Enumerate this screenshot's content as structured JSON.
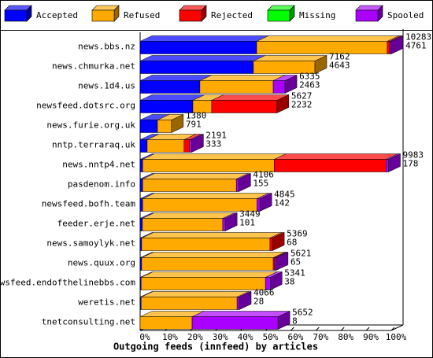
{
  "chart_data": {
    "type": "stacked-bar-3d",
    "orientation": "horizontal",
    "x_label": "Outgoing feeds (innfeed) by articles",
    "categories": [
      "news.bbs.nz",
      "news.chmurka.net",
      "news.1d4.us",
      "newsfeed.dotsrc.org",
      "news.furie.org.uk",
      "nntp.terraraq.uk",
      "news.nntp4.net",
      "pasdenom.info",
      "newsfeed.bofh.team",
      "feeder.erje.net",
      "news.samoylyk.net",
      "news.quux.org",
      "newsfeed.endofthelinebbs.com",
      "weretis.net",
      "tnetconsulting.net"
    ],
    "series": [
      {
        "name": "Accepted",
        "color": "#0000ff",
        "values": [
          46.4,
          45.1,
          23.8,
          21.0,
          6.9,
          2.8,
          1.0,
          1.0,
          1.0,
          0.9,
          0.6,
          0.6,
          0.4,
          0.4,
          0
        ]
      },
      {
        "name": "Refused",
        "color": "#ffaa00",
        "values": [
          52.0,
          24.5,
          29.2,
          7.5,
          5.6,
          14.7,
          52.4,
          37.3,
          45.5,
          32.0,
          51.1,
          52.4,
          49.5,
          38.2,
          20.7
        ]
      },
      {
        "name": "Rejected",
        "color": "#ff0000",
        "values": [
          1.0,
          0,
          0,
          26.0,
          0,
          2.2,
          44.5,
          0,
          0,
          0,
          1.0,
          0.6,
          0,
          0,
          0
        ]
      },
      {
        "name": "Missing",
        "color": "#00ff00",
        "values": [
          0,
          0,
          0,
          0,
          0,
          0,
          0,
          0,
          0,
          0,
          0,
          0,
          0,
          0,
          0
        ]
      },
      {
        "name": "Spooled",
        "color": "#aa00ff",
        "values": [
          0.6,
          0,
          4.7,
          0,
          0,
          0.8,
          1.0,
          1.0,
          1.2,
          1.0,
          0,
          0.6,
          1.9,
          0.9,
          34.2
        ]
      }
    ],
    "bar_labels": [
      {
        "top": 10283,
        "bottom": 4761
      },
      {
        "top": 7162,
        "bottom": 4643
      },
      {
        "top": 6335,
        "bottom": 2463
      },
      {
        "top": 5627,
        "bottom": 2232
      },
      {
        "top": 1380,
        "bottom": 791
      },
      {
        "top": 2191,
        "bottom": 333
      },
      {
        "top": 9983,
        "bottom": 178
      },
      {
        "top": 4106,
        "bottom": 155
      },
      {
        "top": 4845,
        "bottom": 142
      },
      {
        "top": 3449,
        "bottom": 101
      },
      {
        "top": 5369,
        "bottom": 68
      },
      {
        "top": 5621,
        "bottom": 65
      },
      {
        "top": 5341,
        "bottom": 38
      },
      {
        "top": 4066,
        "bottom": 28
      },
      {
        "top": 5652,
        "bottom": 8
      }
    ],
    "xlim": [
      0,
      100
    ],
    "xticks": [
      {
        "value": 0,
        "label": "0%"
      },
      {
        "value": 10,
        "label": "10%"
      },
      {
        "value": 20,
        "label": "20%"
      },
      {
        "value": 30,
        "label": "30%"
      },
      {
        "value": 40,
        "label": "40%"
      },
      {
        "value": 50,
        "label": "50%"
      },
      {
        "value": 60,
        "label": "60%"
      },
      {
        "value": 70,
        "label": "70%"
      },
      {
        "value": 80,
        "label": "80%"
      },
      {
        "value": 90,
        "label": "90%"
      },
      {
        "value": 100,
        "label": "100%"
      }
    ],
    "legend": "top"
  }
}
